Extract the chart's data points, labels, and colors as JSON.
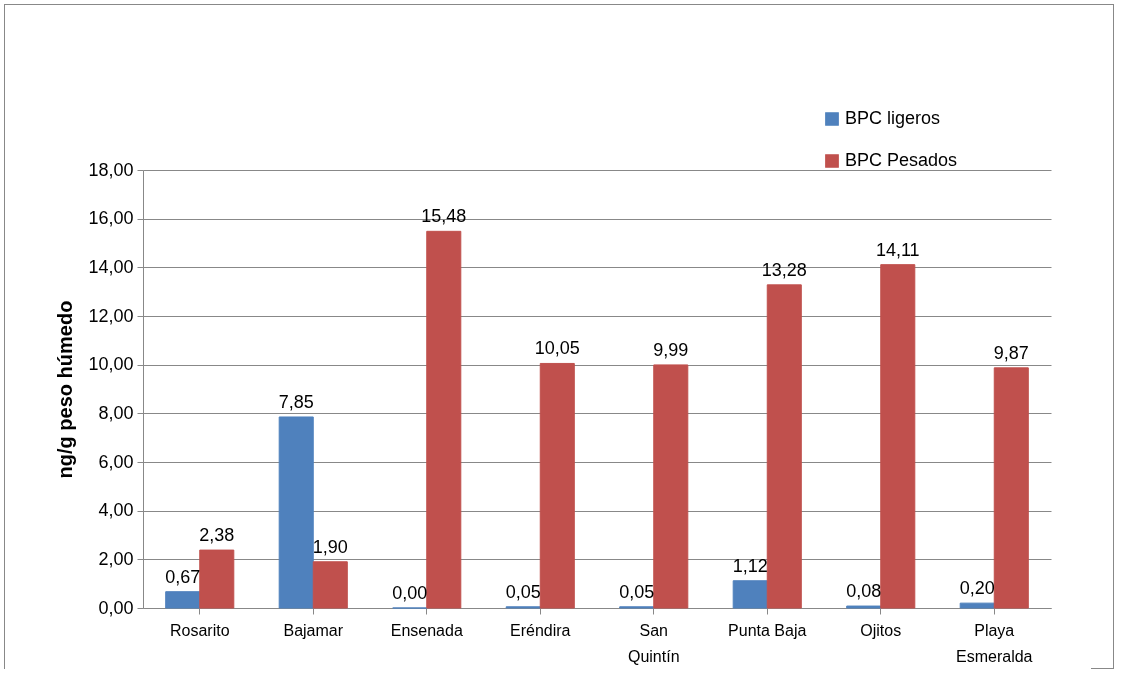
{
  "chart_data": {
    "type": "bar",
    "ylabel": "ng/g peso húmedo",
    "categories": [
      "Rosarito",
      "Bajamar",
      "Ensenada",
      "Eréndira",
      "San Quintín",
      "Punta Baja",
      "Ojitos",
      "Playa Esmeralda"
    ],
    "series": [
      {
        "name": "BPC ligeros",
        "color": "#4f81bd",
        "values": [
          0.67,
          7.85,
          0.0,
          0.05,
          0.05,
          1.12,
          0.08,
          0.2
        ],
        "value_labels": [
          "0,67",
          "7,85",
          "0,00",
          "0,05",
          "0,05",
          "1,12",
          "0,08",
          "0,20"
        ]
      },
      {
        "name": "BPC Pesados",
        "color": "#c0504d",
        "values": [
          2.38,
          1.9,
          15.48,
          10.05,
          9.99,
          13.28,
          14.11,
          9.87
        ],
        "value_labels": [
          "2,38",
          "1,90",
          "15,48",
          "10,05",
          "9,99",
          "13,28",
          "14,11",
          "9,87"
        ]
      }
    ],
    "ylim": [
      0,
      18
    ],
    "yticks": [
      {
        "value": 0,
        "label": "0,00"
      },
      {
        "value": 2,
        "label": "2,00"
      },
      {
        "value": 4,
        "label": "4,00"
      },
      {
        "value": 6,
        "label": "6,00"
      },
      {
        "value": 8,
        "label": "8,00"
      },
      {
        "value": 10,
        "label": "10,00"
      },
      {
        "value": 12,
        "label": "12,00"
      },
      {
        "value": 14,
        "label": "14,00"
      },
      {
        "value": 16,
        "label": "16,00"
      },
      {
        "value": 18,
        "label": "18,00"
      }
    ],
    "grid": "y",
    "legend": "top right"
  }
}
